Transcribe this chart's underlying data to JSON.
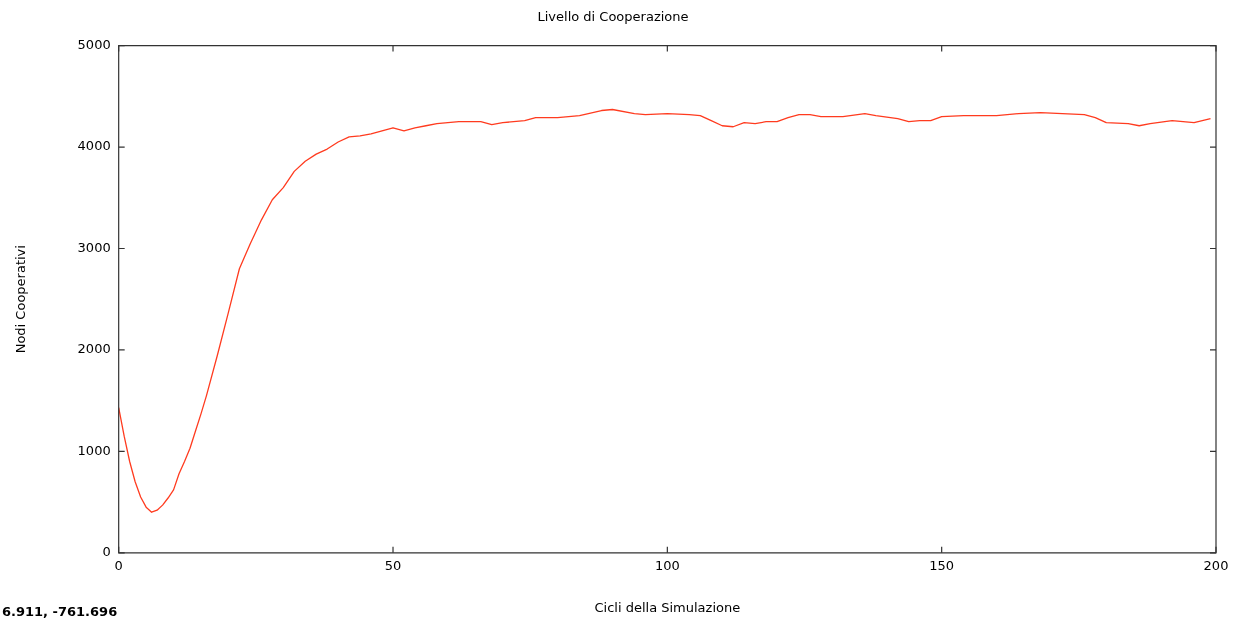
{
  "chart_data": {
    "type": "line",
    "title": "Livello di Cooperazione",
    "xlabel": "Cicli della Simulazione",
    "ylabel": "Nodi Cooperativi",
    "annotations": [
      "6.911, -761.696"
    ],
    "x": [
      0,
      1,
      2,
      3,
      4,
      5,
      6,
      7,
      8,
      9,
      10,
      11,
      12,
      13,
      14,
      15,
      16,
      18,
      20,
      22,
      24,
      26,
      28,
      30,
      32,
      34,
      36,
      38,
      40,
      42,
      44,
      46,
      48,
      50,
      52,
      54,
      56,
      58,
      62,
      66,
      68,
      70,
      74,
      76,
      80,
      84,
      88,
      90,
      94,
      96,
      100,
      104,
      106,
      108,
      110,
      112,
      114,
      116,
      118,
      120,
      122,
      124,
      126,
      128,
      132,
      136,
      138,
      142,
      144,
      146,
      148,
      150,
      154,
      160,
      164,
      168,
      172,
      176,
      178,
      180,
      184,
      186,
      188,
      192,
      196,
      199
    ],
    "series": [
      {
        "color": "#ff3b1f",
        "values": [
          1430,
          1150,
          900,
          700,
          550,
          450,
          400,
          420,
          470,
          540,
          620,
          780,
          900,
          1030,
          1200,
          1370,
          1550,
          1950,
          2370,
          2800,
          3050,
          3280,
          3480,
          3600,
          3760,
          3860,
          3930,
          3980,
          4050,
          4100,
          4110,
          4130,
          4160,
          4190,
          4160,
          4190,
          4210,
          4230,
          4250,
          4250,
          4220,
          4240,
          4260,
          4290,
          4290,
          4310,
          4360,
          4370,
          4330,
          4320,
          4330,
          4320,
          4310,
          4260,
          4210,
          4200,
          4240,
          4230,
          4250,
          4250,
          4290,
          4320,
          4320,
          4300,
          4300,
          4330,
          4310,
          4280,
          4250,
          4260,
          4260,
          4300,
          4310,
          4310,
          4330,
          4340,
          4330,
          4320,
          4290,
          4240,
          4230,
          4210,
          4230,
          4260,
          4240,
          4280
        ]
      }
    ],
    "xlim": [
      0,
      200
    ],
    "xticks": [
      0,
      50,
      100,
      150,
      200
    ],
    "ylim": [
      0,
      5000
    ],
    "yticks": [
      0,
      1000,
      2000,
      3000,
      4000,
      5000
    ],
    "grid": false,
    "legend": false,
    "marker": "none",
    "line_style": "solid"
  }
}
